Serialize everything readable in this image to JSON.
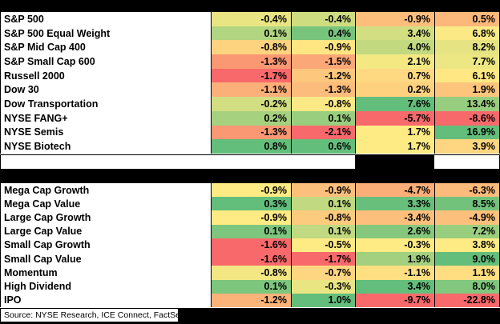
{
  "chart_data": [
    {
      "type": "heatmap",
      "section": "major-indices",
      "value_format": "percent_one_decimal",
      "rows": [
        {
          "label": "S&P 500",
          "values": [
            -0.4,
            -0.4,
            -0.9,
            0.5
          ]
        },
        {
          "label": "S&P 500 Equal Weight",
          "values": [
            0.1,
            0.4,
            3.4,
            6.8
          ]
        },
        {
          "label": "S&P Mid Cap 400",
          "values": [
            -0.8,
            -0.9,
            4.0,
            8.2
          ]
        },
        {
          "label": "S&P Small Cap 600",
          "values": [
            -1.3,
            -1.5,
            2.1,
            7.7
          ]
        },
        {
          "label": "Russell 2000",
          "values": [
            -1.7,
            -1.2,
            0.7,
            6.1
          ]
        },
        {
          "label": "Dow 30",
          "values": [
            -1.1,
            -1.3,
            0.2,
            1.9
          ]
        },
        {
          "label": "Dow Transportation",
          "values": [
            -0.2,
            -0.8,
            7.6,
            13.4
          ]
        },
        {
          "label": "NYSE FANG+",
          "values": [
            0.2,
            0.1,
            -5.7,
            -8.6
          ]
        },
        {
          "label": "NYSE Semis",
          "values": [
            -1.3,
            -2.1,
            1.7,
            16.9
          ]
        },
        {
          "label": "NYSE Biotech",
          "values": [
            0.8,
            0.6,
            1.7,
            3.9
          ]
        }
      ]
    },
    {
      "type": "heatmap",
      "section": "style-factors",
      "value_format": "percent_one_decimal",
      "rows": [
        {
          "label": "Mega Cap Growth",
          "values": [
            -0.9,
            -0.9,
            -4.7,
            -6.3
          ]
        },
        {
          "label": "Mega Cap Value",
          "values": [
            0.3,
            0.1,
            3.3,
            8.5
          ]
        },
        {
          "label": "Large Cap Growth",
          "values": [
            -0.9,
            -0.8,
            -3.4,
            -4.9
          ]
        },
        {
          "label": "Large Cap Value",
          "values": [
            0.1,
            0.1,
            2.6,
            7.2
          ]
        },
        {
          "label": "Small Cap Growth",
          "values": [
            -1.6,
            -0.5,
            -0.3,
            3.8
          ]
        },
        {
          "label": "Small Cap Value",
          "values": [
            -1.6,
            -1.7,
            1.9,
            9.0
          ]
        },
        {
          "label": "Momentum",
          "values": [
            -0.8,
            -0.7,
            -1.1,
            1.1
          ]
        },
        {
          "label": "High Dividend",
          "values": [
            0.1,
            -0.3,
            3.4,
            8.0
          ]
        },
        {
          "label": "IPO",
          "values": [
            -1.2,
            1.0,
            -9.7,
            -22.8
          ]
        }
      ]
    }
  ],
  "color_scale": {
    "min_color": "#F8696B",
    "mid_color": "#FFEB84",
    "max_color": "#63BE7B",
    "midpoint_rule": "per-column median"
  },
  "source_note": "Source: NYSE Research, ICE Connect, FactSet"
}
